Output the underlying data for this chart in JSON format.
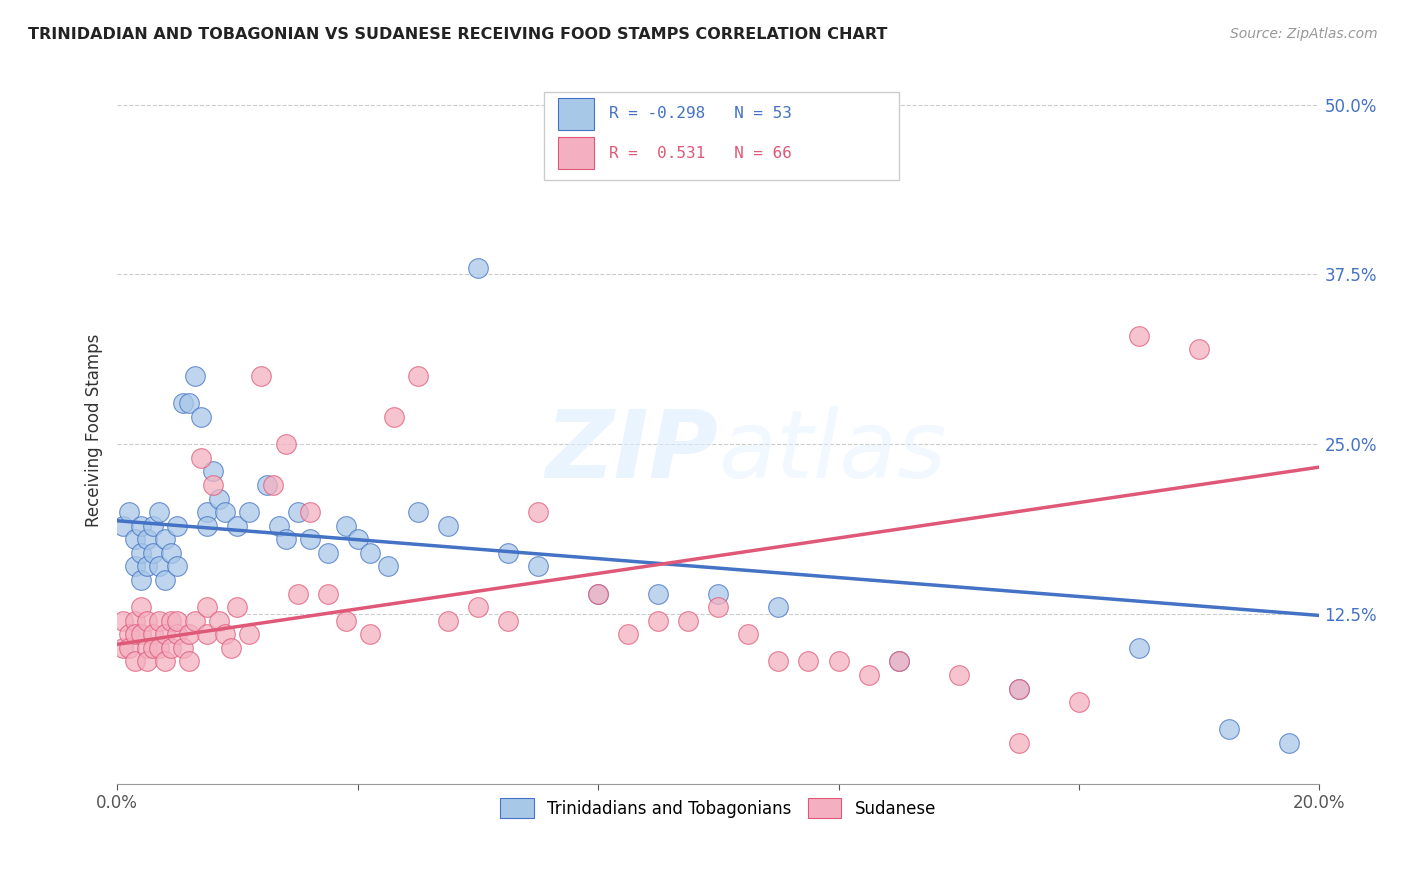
{
  "title": "TRINIDADIAN AND TOBAGONIAN VS SUDANESE RECEIVING FOOD STAMPS CORRELATION CHART",
  "source": "Source: ZipAtlas.com",
  "ylabel": "Receiving Food Stamps",
  "xmin": 0.0,
  "xmax": 0.2,
  "ymin": 0.0,
  "ymax": 0.52,
  "yticks": [
    0.0,
    0.125,
    0.25,
    0.375,
    0.5
  ],
  "ytick_labels": [
    "",
    "12.5%",
    "25.0%",
    "37.5%",
    "50.0%"
  ],
  "xticks": [
    0.0,
    0.04,
    0.08,
    0.12,
    0.16,
    0.2
  ],
  "xtick_labels": [
    "0.0%",
    "",
    "",
    "",
    "",
    "20.0%"
  ],
  "legend_bottom_blue": "Trinidadians and Tobagonians",
  "legend_bottom_pink": "Sudanese",
  "blue_color": "#a8c8e8",
  "pink_color": "#f4b0c0",
  "blue_line_color": "#4472c4",
  "pink_line_color": "#e05878",
  "blue_R": -0.298,
  "blue_N": 53,
  "pink_R": 0.531,
  "pink_N": 66,
  "watermark": "ZIPatlas",
  "blue_x": [
    0.001,
    0.002,
    0.003,
    0.003,
    0.004,
    0.004,
    0.004,
    0.005,
    0.005,
    0.006,
    0.006,
    0.007,
    0.007,
    0.008,
    0.008,
    0.009,
    0.01,
    0.01,
    0.011,
    0.012,
    0.013,
    0.014,
    0.015,
    0.015,
    0.016,
    0.017,
    0.018,
    0.02,
    0.022,
    0.025,
    0.027,
    0.028,
    0.03,
    0.032,
    0.035,
    0.038,
    0.04,
    0.042,
    0.045,
    0.05,
    0.055,
    0.06,
    0.065,
    0.07,
    0.08,
    0.09,
    0.1,
    0.11,
    0.13,
    0.15,
    0.17,
    0.185,
    0.195
  ],
  "blue_y": [
    0.19,
    0.2,
    0.18,
    0.16,
    0.17,
    0.19,
    0.15,
    0.18,
    0.16,
    0.19,
    0.17,
    0.2,
    0.16,
    0.18,
    0.15,
    0.17,
    0.19,
    0.16,
    0.28,
    0.28,
    0.3,
    0.27,
    0.2,
    0.19,
    0.23,
    0.21,
    0.2,
    0.19,
    0.2,
    0.22,
    0.19,
    0.18,
    0.2,
    0.18,
    0.17,
    0.19,
    0.18,
    0.17,
    0.16,
    0.2,
    0.19,
    0.38,
    0.17,
    0.16,
    0.14,
    0.14,
    0.14,
    0.13,
    0.09,
    0.07,
    0.1,
    0.04,
    0.03
  ],
  "pink_x": [
    0.001,
    0.001,
    0.002,
    0.002,
    0.003,
    0.003,
    0.003,
    0.004,
    0.004,
    0.005,
    0.005,
    0.005,
    0.006,
    0.006,
    0.007,
    0.007,
    0.008,
    0.008,
    0.009,
    0.009,
    0.01,
    0.01,
    0.011,
    0.012,
    0.012,
    0.013,
    0.014,
    0.015,
    0.015,
    0.016,
    0.017,
    0.018,
    0.019,
    0.02,
    0.022,
    0.024,
    0.026,
    0.028,
    0.03,
    0.032,
    0.035,
    0.038,
    0.042,
    0.046,
    0.05,
    0.055,
    0.06,
    0.065,
    0.07,
    0.08,
    0.09,
    0.1,
    0.11,
    0.12,
    0.13,
    0.14,
    0.15,
    0.16,
    0.17,
    0.18,
    0.085,
    0.095,
    0.105,
    0.115,
    0.125,
    0.15
  ],
  "pink_y": [
    0.1,
    0.12,
    0.11,
    0.1,
    0.12,
    0.11,
    0.09,
    0.13,
    0.11,
    0.1,
    0.12,
    0.09,
    0.11,
    0.1,
    0.12,
    0.1,
    0.11,
    0.09,
    0.12,
    0.1,
    0.11,
    0.12,
    0.1,
    0.11,
    0.09,
    0.12,
    0.24,
    0.13,
    0.11,
    0.22,
    0.12,
    0.11,
    0.1,
    0.13,
    0.11,
    0.3,
    0.22,
    0.25,
    0.14,
    0.2,
    0.14,
    0.12,
    0.11,
    0.27,
    0.3,
    0.12,
    0.13,
    0.12,
    0.2,
    0.14,
    0.12,
    0.13,
    0.09,
    0.09,
    0.09,
    0.08,
    0.07,
    0.06,
    0.33,
    0.32,
    0.11,
    0.12,
    0.11,
    0.09,
    0.08,
    0.03
  ]
}
